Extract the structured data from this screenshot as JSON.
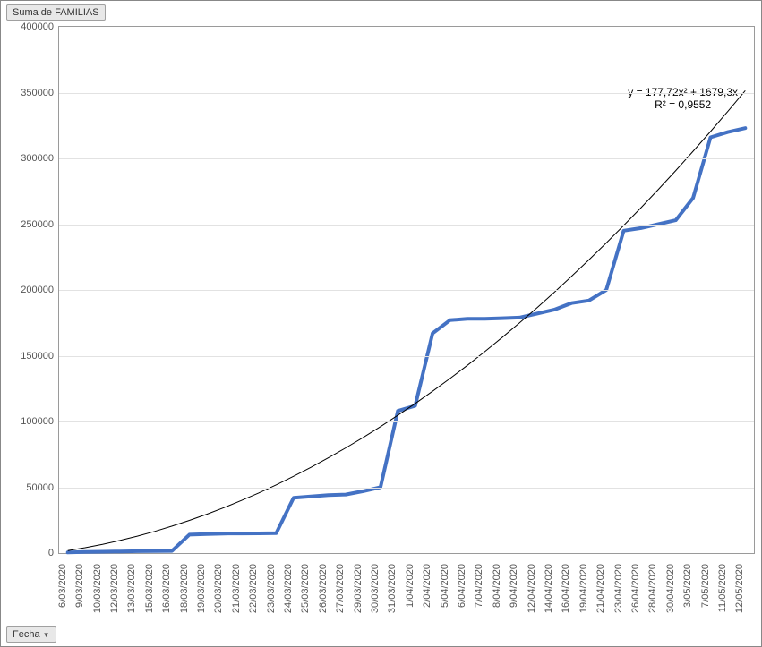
{
  "top_button_label": "Suma de FAMILIAS",
  "bottom_button_label": "Fecha",
  "equation_line1": "y = 177,72x² + 1679,3x",
  "equation_line2": "R² = 0,9552",
  "chart": {
    "type": "line",
    "ylim": [
      0,
      400000
    ],
    "ytick_step": 50000,
    "xlabels": [
      "6/03/2020",
      "9/03/2020",
      "10/03/2020",
      "12/03/2020",
      "13/03/2020",
      "15/03/2020",
      "16/03/2020",
      "18/03/2020",
      "19/03/2020",
      "20/03/2020",
      "21/03/2020",
      "22/03/2020",
      "23/03/2020",
      "24/03/2020",
      "25/03/2020",
      "26/03/2020",
      "27/03/2020",
      "29/03/2020",
      "30/03/2020",
      "31/03/2020",
      "1/04/2020",
      "2/04/2020",
      "5/04/2020",
      "6/04/2020",
      "7/04/2020",
      "8/04/2020",
      "9/04/2020",
      "12/04/2020",
      "14/04/2020",
      "16/04/2020",
      "19/04/2020",
      "21/04/2020",
      "23/04/2020",
      "26/04/2020",
      "28/04/2020",
      "30/04/2020",
      "3/05/2020",
      "7/05/2020",
      "11/05/2020",
      "12/05/2020"
    ],
    "data_values": [
      500,
      800,
      1000,
      1200,
      1400,
      1500,
      1600,
      14000,
      14500,
      14800,
      14900,
      15000,
      15200,
      42000,
      43000,
      44000,
      44500,
      47000,
      50000,
      108000,
      112000,
      167000,
      177000,
      178000,
      178000,
      178500,
      179000,
      182000,
      185000,
      190000,
      192000,
      200000,
      245000,
      247000,
      250000,
      253000,
      270000,
      316000,
      320000,
      323000
    ],
    "trend_coeff_a": 177.72,
    "trend_coeff_b": 1679.3,
    "data_line_color": "#4472c4",
    "data_line_width": 4,
    "trend_line_color": "#000000",
    "trend_line_width": 1,
    "grid_color": "#e2e2e2",
    "background_color": "#ffffff",
    "axis_label_color": "#555555",
    "axis_label_fontsize": 11,
    "equation_fontsize": 12,
    "plot_border_color": "#9a9a9a"
  }
}
